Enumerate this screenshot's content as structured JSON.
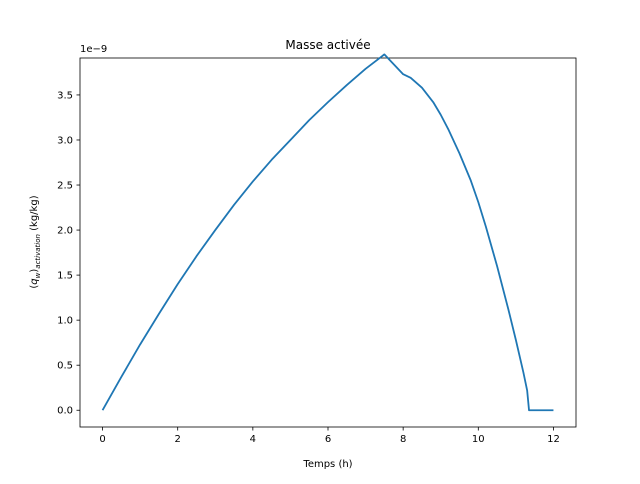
{
  "chart_data": {
    "type": "line",
    "title": "Masse activée",
    "xlabel": "Temps (h)",
    "ylabel": "(q_w)_activation (kg/kg)",
    "ylabel_parts": {
      "open": "(",
      "symbol": "q",
      "subscript": "w",
      "close": ")",
      "sub_activation": "activation",
      "unit": " (kg/kg)"
    },
    "y_offset_text": "1e−9",
    "xlim": [
      -0.6,
      12.6
    ],
    "ylim": [
      -0.186,
      3.91
    ],
    "x_ticks": [
      0,
      2,
      4,
      6,
      8,
      10,
      12
    ],
    "x_tick_labels": [
      "0",
      "2",
      "4",
      "6",
      "8",
      "10",
      "12"
    ],
    "y_ticks": [
      0.0,
      0.5,
      1.0,
      1.5,
      2.0,
      2.5,
      3.0,
      3.5
    ],
    "y_tick_labels": [
      "0.0",
      "0.5",
      "1.0",
      "1.5",
      "2.0",
      "2.5",
      "3.0",
      "3.5"
    ],
    "grid": false,
    "line_color": "#1f77b4",
    "series": [
      {
        "x": [
          0,
          0.5,
          1,
          1.5,
          2,
          2.5,
          3,
          3.5,
          4,
          4.5,
          5,
          5.5,
          6,
          6.5,
          7,
          7.5,
          8,
          8.2,
          8.5,
          8.8,
          9.0,
          9.2,
          9.5,
          9.8,
          10.0,
          10.2,
          10.5,
          10.8,
          11.0,
          11.1,
          11.2,
          11.3,
          11.35,
          12.0
        ],
        "y": [
          0.0,
          0.37,
          0.73,
          1.07,
          1.4,
          1.71,
          2.0,
          2.28,
          2.54,
          2.78,
          3.0,
          3.22,
          3.42,
          3.61,
          3.79,
          3.95,
          3.73,
          3.69,
          3.58,
          3.42,
          3.28,
          3.12,
          2.85,
          2.55,
          2.31,
          2.04,
          1.6,
          1.12,
          0.78,
          0.6,
          0.42,
          0.22,
          0.0,
          0.0
        ]
      }
    ]
  }
}
